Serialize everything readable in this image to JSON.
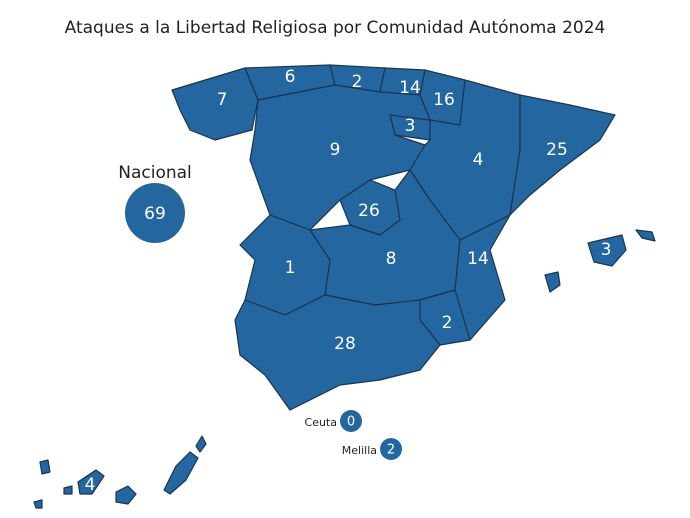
{
  "title": "Ataques a la Libertad Religiosa por Comunidad Autónoma 2024",
  "regions": [
    7,
    6,
    2,
    14,
    16,
    3,
    9,
    4,
    25,
    26,
    1,
    8,
    14,
    3,
    2,
    28,
    4
  ],
  "national": {
    "label": "Nacional",
    "value": 69
  },
  "cities": [
    {
      "label": "Ceuta",
      "value": 0
    },
    {
      "label": "Melilla",
      "value": 2
    }
  ]
}
